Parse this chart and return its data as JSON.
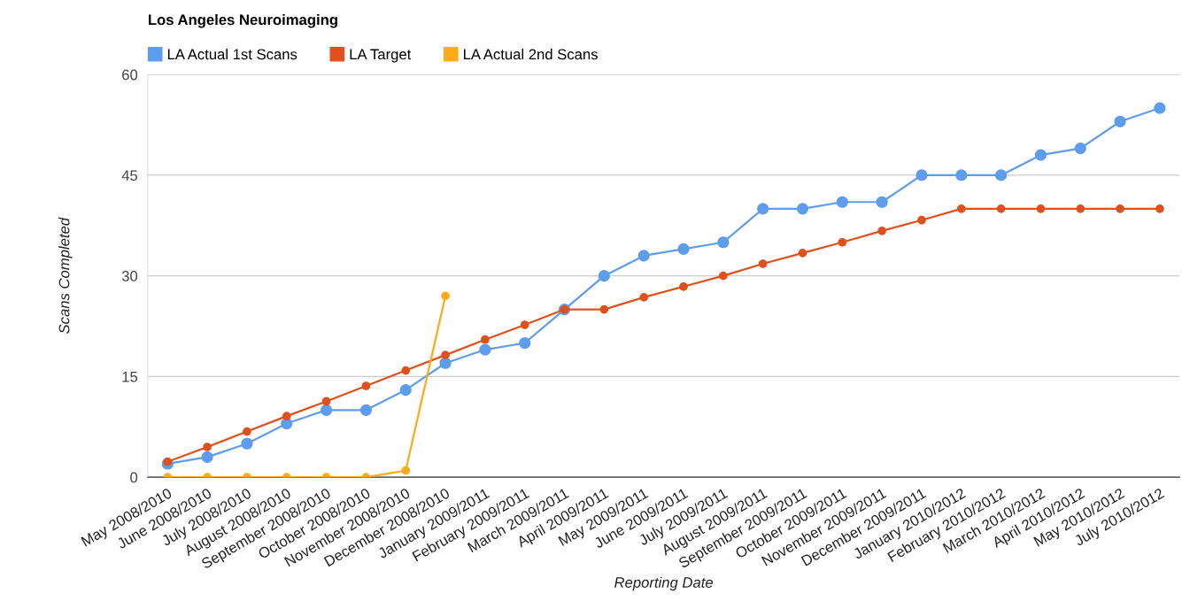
{
  "chart_data": {
    "type": "line",
    "title": "Los Angeles Neuroimaging",
    "xlabel": "Reporting Date",
    "ylabel": "Scans Completed",
    "categories": [
      "May 2008/2010",
      "June 2008/2010",
      "July 2008/2010",
      "August 2008/2010",
      "September 2008/2010",
      "October 2008/2010",
      "November 2008/2010",
      "December 2008/2010",
      "January 2009/2011",
      "February 2009/2011",
      "March 2009/2011",
      "April 2009/2011",
      "May 2009/2011",
      "June 2009/2011",
      "July 2009/2011",
      "August 2009/2011",
      "September 2009/2011",
      "October 2009/2011",
      "November 2009/2011",
      "December 2009/2011",
      "January 2010/2012",
      "February 2010/2012",
      "March 2010/2012",
      "April 2010/2012",
      "May 2010/2012",
      "July 2010/2012"
    ],
    "series": [
      {
        "name": "LA Actual 1st Scans",
        "color": "#5e9cec",
        "values": [
          2,
          3,
          5,
          8,
          10,
          10,
          13,
          17,
          19,
          20,
          25,
          30,
          33,
          34,
          35,
          40,
          40,
          41,
          41,
          45,
          45,
          45,
          48,
          49,
          53,
          55
        ]
      },
      {
        "name": "LA Target",
        "color": "#e0501c",
        "values": [
          2.3,
          4.5,
          6.8,
          9.1,
          11.3,
          13.6,
          15.9,
          18.2,
          20.5,
          22.7,
          25,
          25,
          26.8,
          28.4,
          30,
          31.8,
          33.4,
          35,
          36.7,
          38.3,
          40,
          40,
          40,
          40,
          40,
          40
        ]
      },
      {
        "name": "LA Actual 2nd Scans",
        "color": "#fdab18",
        "values": [
          0,
          0,
          0,
          0,
          0,
          0,
          1,
          27,
          null,
          null,
          null,
          null,
          null,
          null,
          null,
          null,
          null,
          null,
          null,
          null,
          null,
          null,
          null,
          null,
          null,
          null
        ]
      }
    ],
    "ylim": [
      0,
      60
    ],
    "yticks": [
      0,
      15,
      30,
      45,
      60
    ],
    "grid": "y",
    "legend": "top left",
    "marker": "circle",
    "line_style": "solid"
  }
}
